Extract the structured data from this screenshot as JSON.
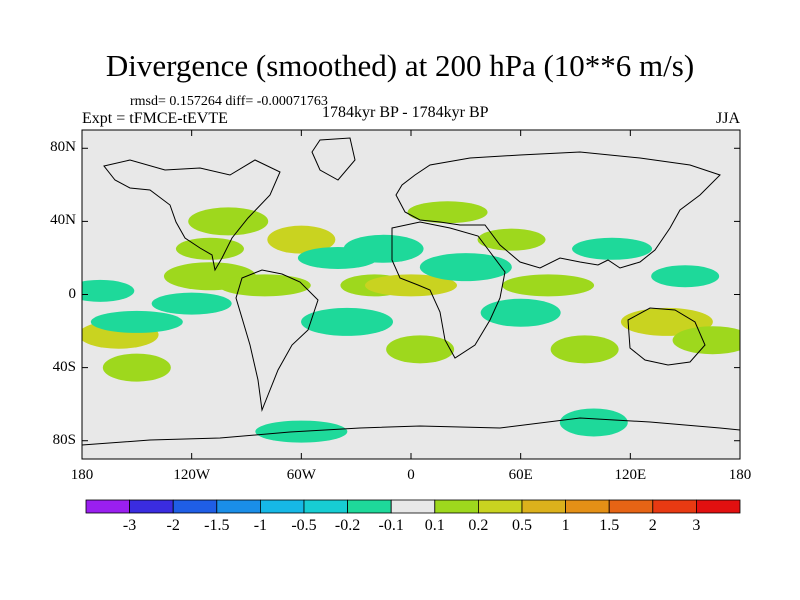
{
  "chart_data": {
    "type": "heatmap",
    "title": "Divergence (smoothed) at 200 hPa (10**6 m/s)",
    "stats": "rmsd= 0.157264  diff= -0.00071763",
    "experiment": "Expt = tFMCE-tEVTE",
    "period": "1784kyr BP - 1784kyr BP",
    "season": "JJA",
    "projection": "cylindrical equidistant",
    "x_range": [
      -180,
      180
    ],
    "y_range": [
      -90,
      90
    ],
    "x_ticks": [
      {
        "value": -180,
        "label": "180"
      },
      {
        "value": -120,
        "label": "120W"
      },
      {
        "value": -60,
        "label": "60W"
      },
      {
        "value": 0,
        "label": "0"
      },
      {
        "value": 60,
        "label": "60E"
      },
      {
        "value": 120,
        "label": "120E"
      },
      {
        "value": 180,
        "label": "180"
      }
    ],
    "y_ticks": [
      {
        "value": 80,
        "label": "80N"
      },
      {
        "value": 40,
        "label": "40N"
      },
      {
        "value": 0,
        "label": "0"
      },
      {
        "value": -40,
        "label": "40S"
      },
      {
        "value": -80,
        "label": "80S"
      }
    ],
    "colorbar": {
      "levels": [
        "-3",
        "-2",
        "-1.5",
        "-1",
        "-0.5",
        "-0.2",
        "-0.1",
        "0.1",
        "0.2",
        "0.5",
        "1",
        "1.5",
        "2",
        "3"
      ],
      "colors": [
        "#9a1ff0",
        "#3a2ce0",
        "#1f5ee6",
        "#1a8ee8",
        "#16b8e6",
        "#17cdd3",
        "#1ed99a",
        "#e8e8e8",
        "#9ed81d",
        "#c9d320",
        "#dcb11c",
        "#e49016",
        "#e66415",
        "#e83a12",
        "#e21010"
      ]
    },
    "anomaly_regions": [
      {
        "lon": -170,
        "lat": 2,
        "value": -0.15
      },
      {
        "lon": -160,
        "lat": -22,
        "value": 0.35
      },
      {
        "lon": -150,
        "lat": -15,
        "value": -0.15
      },
      {
        "lon": -150,
        "lat": -40,
        "value": 0.15
      },
      {
        "lon": -120,
        "lat": -5,
        "value": -0.15
      },
      {
        "lon": -110,
        "lat": 10,
        "value": 0.15
      },
      {
        "lon": -110,
        "lat": 25,
        "value": 0.15
      },
      {
        "lon": -100,
        "lat": 40,
        "value": 0.15
      },
      {
        "lon": -80,
        "lat": 5,
        "value": 0.15
      },
      {
        "lon": -60,
        "lat": 30,
        "value": 0.25
      },
      {
        "lon": -40,
        "lat": 20,
        "value": -0.15
      },
      {
        "lon": -35,
        "lat": -15,
        "value": -0.15
      },
      {
        "lon": -20,
        "lat": 5,
        "value": 0.15
      },
      {
        "lon": -15,
        "lat": 25,
        "value": -0.15
      },
      {
        "lon": 0,
        "lat": 5,
        "value": 0.25
      },
      {
        "lon": 5,
        "lat": -30,
        "value": 0.15
      },
      {
        "lon": 20,
        "lat": 45,
        "value": 0.15
      },
      {
        "lon": 30,
        "lat": 15,
        "value": -0.15
      },
      {
        "lon": 55,
        "lat": 30,
        "value": 0.15
      },
      {
        "lon": 60,
        "lat": -10,
        "value": -0.15
      },
      {
        "lon": 75,
        "lat": 5,
        "value": 0.15
      },
      {
        "lon": 95,
        "lat": -30,
        "value": 0.15
      },
      {
        "lon": 110,
        "lat": 25,
        "value": -0.15
      },
      {
        "lon": 140,
        "lat": -15,
        "value": 0.25
      },
      {
        "lon": 150,
        "lat": 10,
        "value": -0.15
      },
      {
        "lon": 165,
        "lat": -25,
        "value": 0.15
      },
      {
        "lon": -60,
        "lat": -75,
        "value": -0.15
      },
      {
        "lon": 100,
        "lat": -70,
        "value": -0.15
      }
    ]
  }
}
